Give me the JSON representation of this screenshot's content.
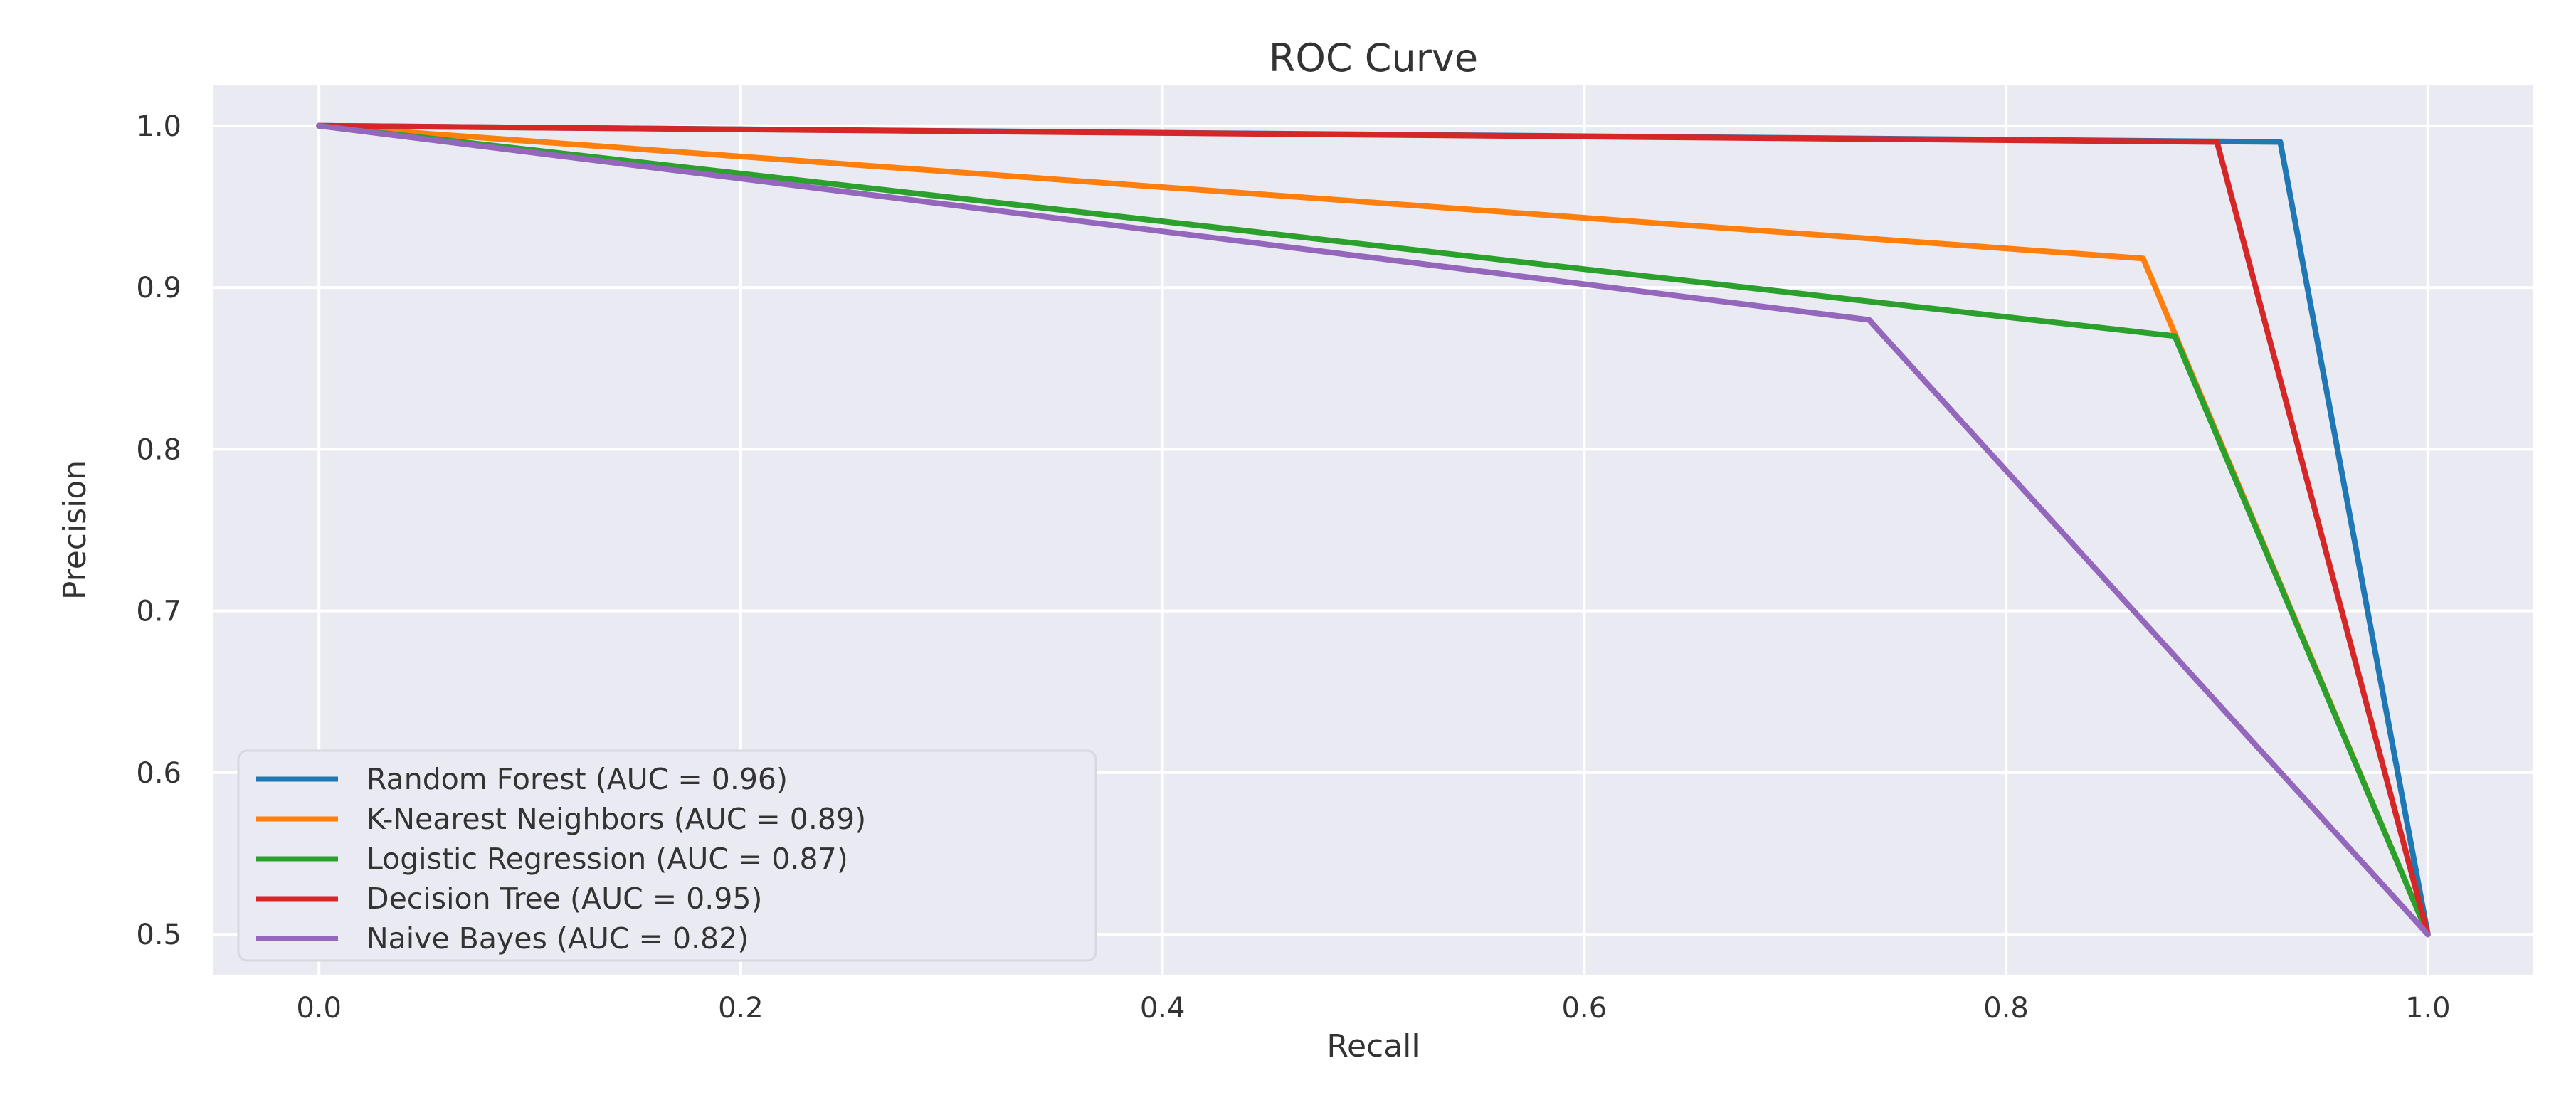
{
  "chart_data": {
    "type": "line",
    "title": "ROC Curve",
    "xlabel": "Recall",
    "ylabel": "Precision",
    "xlim": [
      -0.05,
      1.05
    ],
    "ylim": [
      0.475,
      1.025
    ],
    "xticks": [
      0.0,
      0.2,
      0.4,
      0.6,
      0.8,
      1.0
    ],
    "xtick_labels": [
      "0.0",
      "0.2",
      "0.4",
      "0.6",
      "0.8",
      "1.0"
    ],
    "yticks": [
      0.5,
      0.6,
      0.7,
      0.8,
      0.9,
      1.0
    ],
    "ytick_labels": [
      "0.5",
      "0.6",
      "0.7",
      "0.8",
      "0.9",
      "1.0"
    ],
    "grid": true,
    "legend_position": "lower-left",
    "background_color": "#eaeaf2",
    "series": [
      {
        "name": "Random Forest (AUC = 0.96)",
        "color": "#1f77b4",
        "x": [
          0.0,
          0.93,
          1.0
        ],
        "y": [
          1.0,
          0.99,
          0.5
        ]
      },
      {
        "name": "K-Nearest Neighbors (AUC = 0.89)",
        "color": "#ff7f0e",
        "x": [
          0.0,
          0.865,
          1.0
        ],
        "y": [
          1.0,
          0.918,
          0.5
        ]
      },
      {
        "name": "Logistic Regression (AUC = 0.87)",
        "color": "#2ca02c",
        "x": [
          0.0,
          0.88,
          1.0
        ],
        "y": [
          1.0,
          0.87,
          0.5
        ]
      },
      {
        "name": "Decision Tree (AUC = 0.95)",
        "color": "#d62728",
        "x": [
          0.0,
          0.9,
          1.0
        ],
        "y": [
          1.0,
          0.99,
          0.5
        ]
      },
      {
        "name": "Naive Bayes (AUC = 0.82)",
        "color": "#9467bd",
        "x": [
          0.0,
          0.735,
          1.0
        ],
        "y": [
          1.0,
          0.88,
          0.5
        ]
      }
    ]
  }
}
